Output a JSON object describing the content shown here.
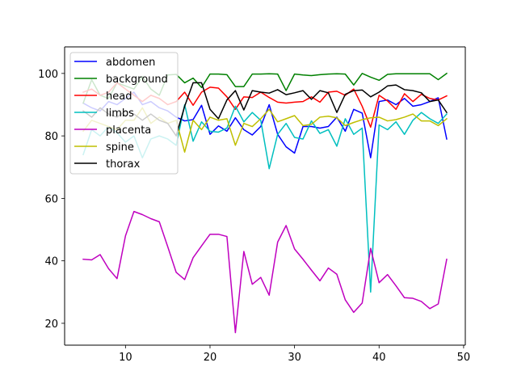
{
  "chart_data": {
    "type": "line",
    "title": "",
    "xlabel": "",
    "ylabel": "",
    "xlim": [
      2.8,
      50.2
    ],
    "ylim": [
      13,
      108.5
    ],
    "xticks": [
      10,
      20,
      30,
      40,
      50
    ],
    "yticks": [
      20,
      40,
      60,
      80,
      100
    ],
    "grid": false,
    "legend_position": "upper left",
    "x": [
      5,
      6,
      7,
      8,
      9,
      10,
      11,
      12,
      13,
      14,
      15,
      16,
      17,
      18,
      19,
      20,
      21,
      22,
      23,
      24,
      25,
      26,
      27,
      28,
      29,
      30,
      31,
      32,
      33,
      34,
      35,
      36,
      37,
      38,
      39,
      40,
      41,
      42,
      43,
      44,
      45,
      46,
      47,
      48
    ],
    "series": [
      {
        "name": "abdomen",
        "color": "#0000ff",
        "values": [
          90.5,
          89,
          88,
          91,
          90,
          92,
          94,
          90,
          91,
          89,
          88,
          86,
          84.8,
          85.2,
          89.8,
          80.5,
          83.2,
          81.5,
          85.8,
          82,
          80.3,
          83,
          90,
          80.5,
          76.5,
          74.5,
          83,
          83,
          82.5,
          83,
          86,
          81.5,
          88.5,
          87.3,
          73,
          91,
          91.5,
          90,
          92,
          89.5,
          90,
          91,
          92.2,
          79
        ]
      },
      {
        "name": "background",
        "color": "#008000",
        "values": [
          90.5,
          98,
          93,
          92,
          97,
          96,
          95,
          99,
          95,
          93,
          99.5,
          99.7,
          97,
          98.5,
          95.5,
          99.8,
          99.8,
          99.6,
          95.8,
          95.8,
          99.8,
          99.8,
          99.9,
          99.8,
          94.5,
          99.8,
          99.5,
          99.3,
          99.6,
          99.8,
          99.9,
          99.8,
          96.3,
          100,
          98.8,
          97.8,
          99.7,
          99.9,
          99.9,
          99.9,
          99.9,
          99.9,
          98,
          100
        ]
      },
      {
        "name": "head",
        "color": "#ff0000",
        "values": [
          94,
          95,
          93,
          94,
          97,
          95,
          93,
          91,
          93,
          92,
          90,
          91,
          94,
          89.8,
          94,
          95.6,
          95.3,
          92.5,
          88.5,
          92.5,
          92.3,
          94,
          92.3,
          90.8,
          90.5,
          90.8,
          91,
          92.5,
          90.8,
          94,
          94.3,
          93,
          95,
          89.5,
          82.8,
          93,
          91.2,
          88.5,
          93.5,
          91,
          93.3,
          92,
          91.5,
          92.8
        ]
      },
      {
        "name": "limbs",
        "color": "#00bfbf",
        "values": [
          74,
          82,
          80,
          83,
          81,
          78,
          80,
          73,
          79,
          80,
          79,
          77,
          90,
          78.3,
          84.5,
          81.5,
          81.2,
          82.5,
          89.5,
          84.5,
          87.5,
          85,
          69.5,
          80.5,
          84,
          79.5,
          79,
          84.8,
          80.8,
          82,
          76.7,
          85.5,
          80.5,
          82.5,
          30,
          83.5,
          82,
          84.5,
          80.5,
          85,
          87.5,
          85.5,
          84,
          87
        ]
      },
      {
        "name": "placenta",
        "color": "#bf00bf",
        "values": [
          40.5,
          40.3,
          42,
          37.5,
          34.3,
          48,
          55.8,
          54.8,
          53.5,
          52.5,
          44.5,
          36.3,
          34,
          41,
          44.8,
          48.5,
          48.5,
          47.8,
          17,
          43,
          32.5,
          34.7,
          29,
          46,
          51.3,
          43.8,
          40.5,
          37,
          33.6,
          37.7,
          35.7,
          27.5,
          23.5,
          26.5,
          44,
          33,
          35.6,
          32,
          28.2,
          28,
          27,
          24.7,
          26.2,
          40.5
        ]
      },
      {
        "name": "spine",
        "color": "#bfbf00",
        "values": [
          81.5,
          85,
          84,
          83,
          82,
          85,
          85,
          89,
          84,
          86,
          84,
          85,
          74.8,
          85,
          82,
          86,
          85,
          85.5,
          77,
          84,
          83,
          85.5,
          88.5,
          84.5,
          85.5,
          86.5,
          83.3,
          83.7,
          86,
          86.3,
          85.8,
          83.3,
          84.3,
          85.2,
          85.8,
          86,
          84.8,
          85.2,
          86,
          87,
          84.8,
          84.8,
          83.3,
          85.5
        ]
      },
      {
        "name": "thorax",
        "color": "#000000",
        "values": [
          88,
          86,
          89,
          87,
          86,
          88,
          87,
          85,
          87,
          85,
          84,
          80,
          89.5,
          97,
          97,
          88.5,
          85.5,
          91.5,
          94.5,
          88.3,
          94.5,
          94,
          93.7,
          94.8,
          93.2,
          93.8,
          94.5,
          91.7,
          94.5,
          93.8,
          87.5,
          93.3,
          94.5,
          94.7,
          92.5,
          94,
          96,
          96.3,
          94.8,
          94.5,
          93.8,
          91,
          91.5,
          87.5
        ]
      }
    ]
  }
}
